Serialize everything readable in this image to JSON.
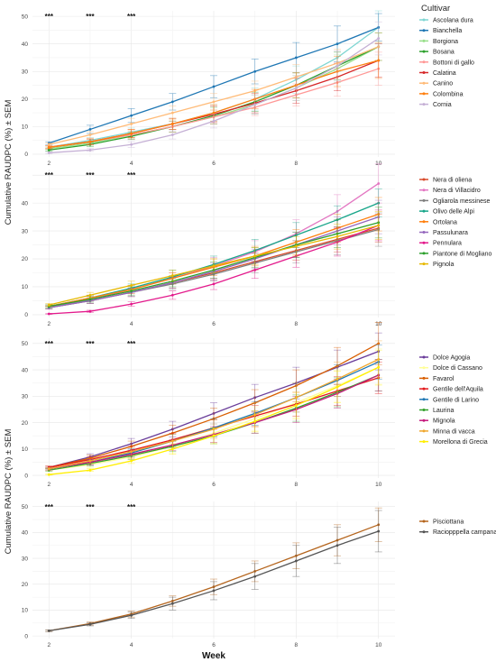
{
  "figure": {
    "y_axis_label": "Cumulative RAUDPC (%) ± SEM",
    "x_axis_label": "Week",
    "legend_title": "Cultivar"
  },
  "chart_data": [
    {
      "type": "line",
      "x": [
        2,
        3,
        4,
        5,
        6,
        7,
        8,
        9,
        10
      ],
      "xlim": [
        1.6,
        10.4
      ],
      "xticks": [
        2,
        4,
        6,
        8,
        10
      ],
      "ylim": [
        -1,
        52
      ],
      "yticks": [
        0,
        10,
        20,
        30,
        40,
        50
      ],
      "grid": true,
      "legend_placement": "right",
      "significance": [
        {
          "x": 2,
          "label": "***"
        },
        {
          "x": 3,
          "label": "***"
        },
        {
          "x": 4,
          "label": "***"
        }
      ],
      "series": [
        {
          "name": "Ascolana dura",
          "color": "#7fd6d2",
          "values": [
            2.5,
            5,
            8,
            11,
            15,
            20,
            27,
            35,
            46
          ],
          "sem": [
            0.5,
            1,
            1.5,
            2,
            3,
            4,
            5,
            5,
            6
          ]
        },
        {
          "name": "Bianchella",
          "color": "#1f77b4",
          "values": [
            4,
            9,
            14,
            19,
            24.5,
            30,
            35,
            40,
            46
          ],
          "sem": [
            0.5,
            1.5,
            2.5,
            3,
            4,
            4.5,
            5.5,
            6.5,
            5
          ]
        },
        {
          "name": "Borgiona",
          "color": "#98df8a",
          "values": [
            2,
            4,
            7,
            10,
            13.5,
            18,
            24,
            31,
            39
          ],
          "sem": [
            0.4,
            0.8,
            1.2,
            2,
            2.5,
            3.5,
            4.5,
            5,
            5
          ]
        },
        {
          "name": "Bosana",
          "color": "#2ca02c",
          "values": [
            1.5,
            3.5,
            6.5,
            10,
            14,
            19,
            25,
            32,
            39
          ],
          "sem": [
            0.4,
            0.8,
            1.2,
            2,
            3,
            3.5,
            4.5,
            5,
            5
          ]
        },
        {
          "name": "Bottoni di gallo",
          "color": "#ff9896",
          "values": [
            2.5,
            4.5,
            7,
            10,
            13.5,
            17,
            21.5,
            26,
            31
          ],
          "sem": [
            0.5,
            1,
            1.5,
            2,
            2.5,
            3,
            4,
            5,
            6
          ]
        },
        {
          "name": "Calatina",
          "color": "#d62728",
          "values": [
            2.5,
            4.5,
            7.5,
            11,
            14.5,
            18.5,
            23,
            28,
            34
          ],
          "sem": [
            0.5,
            1,
            1.5,
            2,
            3,
            3.5,
            4.5,
            5,
            6
          ]
        },
        {
          "name": "Canino",
          "color": "#ffbb78",
          "values": [
            3.5,
            7,
            11,
            15,
            19,
            23,
            28,
            33,
            39
          ],
          "sem": [
            0.5,
            1.2,
            2,
            2.5,
            3,
            3.5,
            4.5,
            5,
            5
          ]
        },
        {
          "name": "Colombina",
          "color": "#ff7f0e",
          "values": [
            2.5,
            4.5,
            7.5,
            11,
            15,
            20,
            25,
            30,
            34
          ],
          "sem": [
            0.5,
            1,
            1.5,
            2,
            3,
            3.5,
            4.5,
            5.5,
            6.5
          ]
        },
        {
          "name": "Cornia",
          "color": "#c5b0d5",
          "values": [
            0.5,
            1.5,
            3.5,
            7,
            12,
            18,
            24,
            32,
            42
          ],
          "sem": [
            0.3,
            0.5,
            1,
            1.5,
            2.5,
            3.5,
            4.5,
            5.5,
            6
          ]
        }
      ]
    },
    {
      "type": "line",
      "x": [
        2,
        3,
        4,
        5,
        6,
        7,
        8,
        9,
        10
      ],
      "xlim": [
        1.6,
        10.4
      ],
      "xticks": [
        2,
        4,
        6,
        8,
        10
      ],
      "ylim": [
        -1,
        52
      ],
      "yticks": [
        0,
        10,
        20,
        30,
        40
      ],
      "grid": true,
      "legend_placement": "right",
      "significance": [
        {
          "x": 2,
          "label": "***"
        },
        {
          "x": 3,
          "label": "***"
        },
        {
          "x": 4,
          "label": "***"
        }
      ],
      "series": [
        {
          "name": "Nera di oliena",
          "color": "#d84a2a",
          "values": [
            2.5,
            5,
            8,
            11.5,
            15,
            19,
            23,
            27,
            31
          ],
          "sem": [
            0.5,
            1,
            1.5,
            2,
            2.5,
            3,
            3.5,
            4.5,
            5
          ]
        },
        {
          "name": "Nera di Villacidro",
          "color": "#e377c2",
          "values": [
            2.5,
            5.5,
            9,
            13,
            17.5,
            22.5,
            29,
            37,
            47
          ],
          "sem": [
            0.5,
            1,
            1.5,
            2,
            3,
            4,
            5,
            6,
            7
          ]
        },
        {
          "name": "Ogliarola messinese",
          "color": "#7f7f7f",
          "values": [
            2.5,
            5,
            8,
            11,
            14.5,
            18.5,
            22.5,
            26.5,
            30.5
          ],
          "sem": [
            0.5,
            1,
            1.5,
            2,
            2.5,
            3.5,
            4,
            5,
            6
          ]
        },
        {
          "name": "Olivo delle Alpi",
          "color": "#17a589",
          "values": [
            3,
            6,
            9.5,
            13.5,
            18,
            23,
            28.5,
            34,
            40
          ],
          "sem": [
            0.5,
            1,
            1.5,
            2.5,
            3,
            4,
            4.5,
            5,
            5
          ]
        },
        {
          "name": "Ortolana",
          "color": "#ff7f0e",
          "values": [
            3,
            6,
            9,
            13,
            17,
            21,
            26,
            31,
            36
          ],
          "sem": [
            0.5,
            1,
            1.5,
            2,
            3,
            3.5,
            4.5,
            5,
            6
          ]
        },
        {
          "name": "Passulunara",
          "color": "#9467bd",
          "values": [
            2.5,
            5,
            8,
            11.5,
            15.5,
            20,
            25,
            30,
            35
          ],
          "sem": [
            0.5,
            1,
            1.5,
            2,
            3,
            3.5,
            4.5,
            5,
            6
          ]
        },
        {
          "name": "Pennulara",
          "color": "#e31a8c",
          "values": [
            0.3,
            1.2,
            3.8,
            7,
            11,
            16,
            21,
            26,
            32
          ],
          "sem": [
            0.2,
            0.4,
            0.8,
            1.5,
            2,
            3,
            4,
            5,
            5.5
          ]
        },
        {
          "name": "Piantone di Mogliano",
          "color": "#2ca02c",
          "values": [
            3,
            5.5,
            8.5,
            12,
            16,
            20.5,
            25,
            29,
            33
          ],
          "sem": [
            0.5,
            1,
            1.5,
            2,
            3,
            3.5,
            4.5,
            5,
            5.5
          ]
        },
        {
          "name": "Pignola",
          "color": "#e6b800",
          "values": [
            3.5,
            7,
            10.5,
            14,
            17.5,
            21,
            24.5,
            28,
            32
          ],
          "sem": [
            0.5,
            1,
            1.5,
            2,
            2.5,
            3,
            3.5,
            4.5,
            5
          ]
        }
      ]
    },
    {
      "type": "line",
      "x": [
        2,
        3,
        4,
        5,
        6,
        7,
        8,
        9,
        10
      ],
      "xlim": [
        1.6,
        10.4
      ],
      "xticks": [
        2,
        4,
        6,
        8,
        10
      ],
      "ylim": [
        -1,
        52
      ],
      "yticks": [
        0,
        10,
        20,
        30,
        40,
        50
      ],
      "grid": true,
      "legend_placement": "right",
      "significance": [
        {
          "x": 2,
          "label": "***"
        },
        {
          "x": 3,
          "label": "***"
        },
        {
          "x": 4,
          "label": "***"
        }
      ],
      "series": [
        {
          "name": "Dolce Agogia",
          "color": "#6a3d9a",
          "values": [
            3,
            7,
            12,
            17.5,
            23.5,
            29.5,
            35,
            41,
            47
          ],
          "sem": [
            0.5,
            1.2,
            2,
            3,
            4,
            5,
            6,
            6.5,
            7
          ]
        },
        {
          "name": "Dolce di Cassano",
          "color": "#ffff99",
          "values": [
            2,
            4,
            7,
            11,
            16,
            21.5,
            27.5,
            34,
            41
          ],
          "sem": [
            0.5,
            1,
            1.5,
            2.5,
            3.5,
            4.5,
            5.5,
            6,
            7
          ]
        },
        {
          "name": "Favarol",
          "color": "#d95f02",
          "values": [
            3,
            6.5,
            11,
            16,
            21.5,
            27.5,
            34,
            41.5,
            50
          ],
          "sem": [
            0.5,
            1.2,
            2,
            3,
            4,
            5,
            6,
            7,
            8
          ]
        },
        {
          "name": "Gentile dell'Aquila",
          "color": "#e31a1c",
          "values": [
            3,
            6,
            9.5,
            13.5,
            18,
            22.5,
            27,
            32,
            37
          ],
          "sem": [
            0.5,
            1,
            1.5,
            2.5,
            3,
            4,
            4.5,
            5.5,
            6
          ]
        },
        {
          "name": "Gentile di Larino",
          "color": "#1f78b4",
          "values": [
            2.5,
            5,
            8.5,
            13,
            18,
            23.5,
            29.5,
            36,
            43
          ],
          "sem": [
            0.5,
            1,
            1.5,
            2.5,
            3.5,
            4.5,
            5.5,
            6,
            6.5
          ]
        },
        {
          "name": "Laurina",
          "color": "#33a02c",
          "values": [
            2,
            4.5,
            7.5,
            11,
            15,
            20,
            25.5,
            31.5,
            38
          ],
          "sem": [
            0.5,
            1,
            1.5,
            2,
            3,
            4,
            5,
            5.5,
            6
          ]
        },
        {
          "name": "Mignola",
          "color": "#c51b7d",
          "values": [
            2.5,
            5,
            8,
            11.5,
            15.5,
            20,
            25,
            31,
            38
          ],
          "sem": [
            0.5,
            1,
            1.5,
            2,
            3,
            4,
            5,
            5.5,
            6
          ]
        },
        {
          "name": "Minna di vacca",
          "color": "#f0a830",
          "values": [
            2.5,
            5.5,
            9,
            13,
            17.5,
            23,
            29.5,
            36.5,
            44
          ],
          "sem": [
            0.5,
            1,
            1.5,
            2.5,
            3.5,
            4.5,
            5.5,
            6.5,
            7
          ]
        },
        {
          "name": "Morellona di Grecia",
          "color": "#ffee00",
          "values": [
            0.3,
            2,
            5.5,
            10,
            15,
            20.5,
            26.5,
            33.5,
            41
          ],
          "sem": [
            0.2,
            0.5,
            1,
            2,
            3,
            4,
            5,
            6,
            6.5
          ]
        }
      ]
    },
    {
      "type": "line",
      "x": [
        2,
        3,
        4,
        5,
        6,
        7,
        8,
        9,
        10
      ],
      "xlim": [
        1.6,
        10.4
      ],
      "xticks": [
        2,
        4,
        6,
        8,
        10
      ],
      "ylim": [
        -1,
        52
      ],
      "yticks": [
        0,
        10,
        20,
        30,
        40,
        50
      ],
      "grid": true,
      "legend_placement": "right",
      "significance": [
        {
          "x": 2,
          "label": "***"
        },
        {
          "x": 3,
          "label": "***"
        },
        {
          "x": 4,
          "label": "***"
        }
      ],
      "series": [
        {
          "name": "Pisciottana",
          "color": "#b5651d",
          "values": [
            2,
            4.8,
            8.5,
            13.5,
            19,
            25,
            31,
            37,
            43
          ],
          "sem": [
            0.3,
            0.6,
            1.2,
            2,
            3,
            4,
            5,
            6,
            6.5
          ]
        },
        {
          "name": "Raciopppella campana",
          "color": "#555555",
          "values": [
            2,
            4.5,
            8,
            12.5,
            17.5,
            23,
            29,
            35,
            40.5
          ],
          "sem": [
            0.3,
            0.6,
            1.2,
            2.5,
            3.5,
            5,
            6,
            7,
            8
          ]
        }
      ]
    }
  ]
}
